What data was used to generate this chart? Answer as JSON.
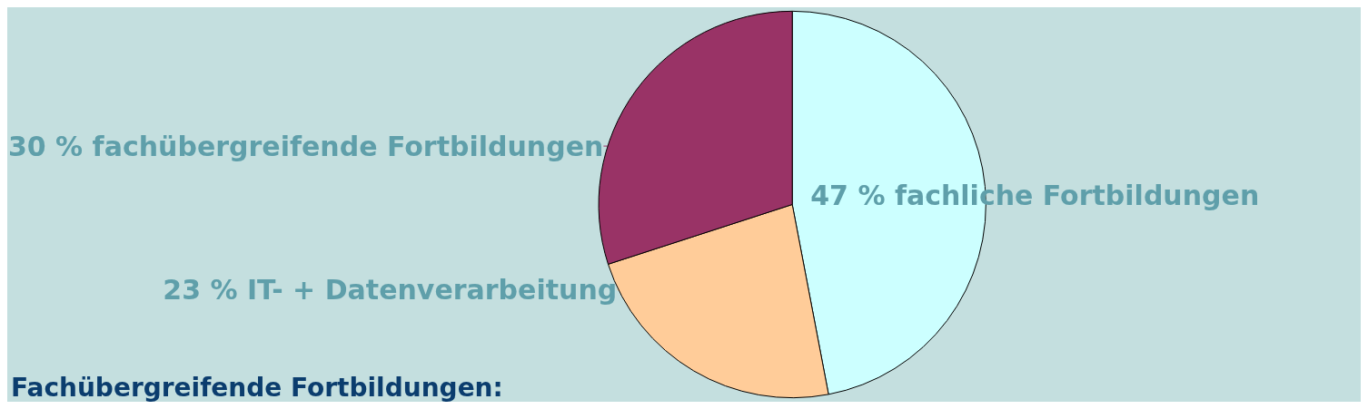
{
  "chart_data": {
    "type": "pie",
    "categories": [
      "fachliche Fortbildungen",
      "IT- + Datenverarbeitung",
      "fachübergreifende Fortbildungen"
    ],
    "values": [
      47,
      23,
      30
    ],
    "value_labels": [
      "47 %",
      "23 %",
      "30 %"
    ],
    "colors": [
      "#ccffff",
      "#ffcc99",
      "#993366"
    ],
    "legend": false,
    "annotations": [
      "Fachübergreifende Fortbildungen:"
    ]
  }
}
